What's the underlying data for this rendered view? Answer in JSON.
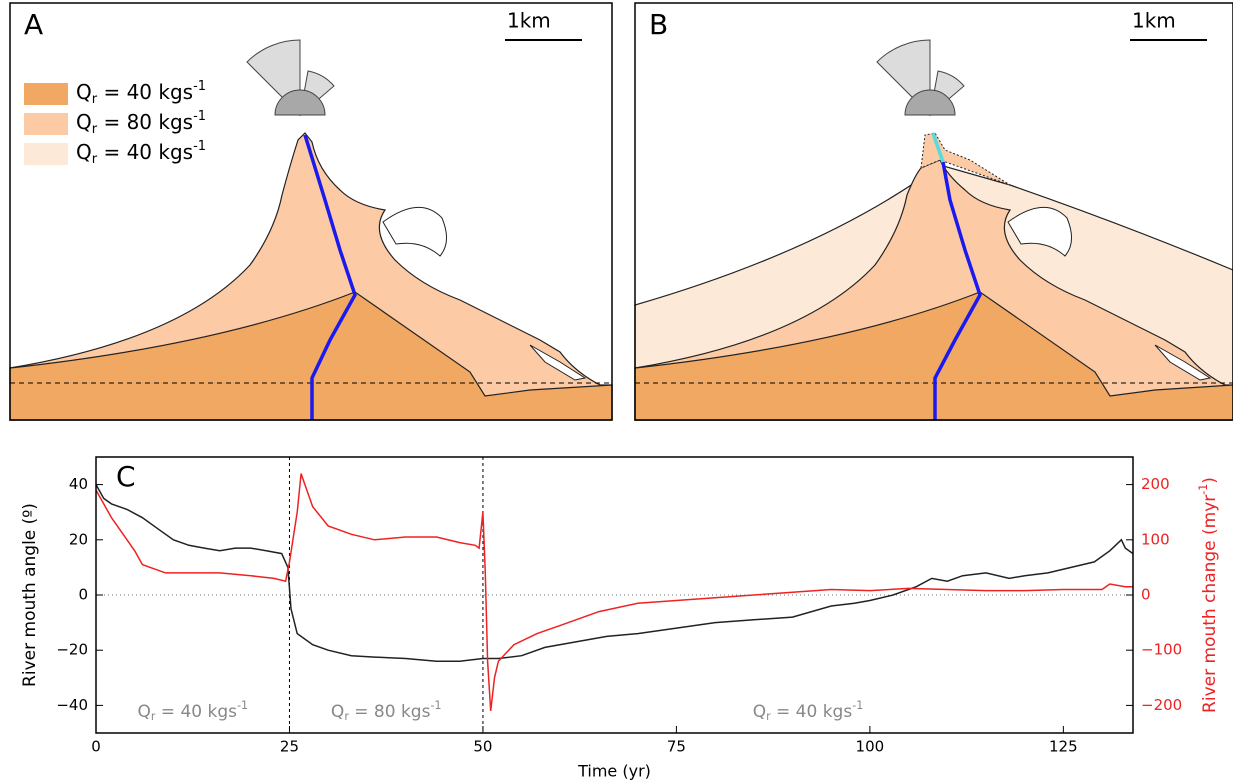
{
  "panel_a": {
    "label": "A",
    "scale": "1km",
    "legend": [
      {
        "symbol": "Q",
        "subscript": "r",
        "text": " = 40 kgs",
        "superscript": "-1",
        "color": "#f0a862"
      },
      {
        "symbol": "Q",
        "subscript": "r",
        "text": " = 80 kgs",
        "superscript": "-1",
        "color": "#fccaa5"
      },
      {
        "symbol": "Q",
        "subscript": "r",
        "text": " = 40 kgs",
        "superscript": "-1",
        "color": "#fde9d8"
      }
    ]
  },
  "panel_b": {
    "label": "B",
    "scale": "1km"
  },
  "chart_data": {
    "type": "line",
    "label": "C",
    "xlabel": "Time (yr)",
    "ylabel": "River mouth angle (º)",
    "y2label": {
      "text": "River mouth change (myr",
      "superscript": "-1",
      "suffix": ")"
    },
    "xlim": [
      0,
      134
    ],
    "xticks": [
      0,
      25,
      50,
      75,
      100,
      125
    ],
    "ylim": [
      -50,
      50
    ],
    "yticks": [
      {
        "value": -40,
        "label": "−40"
      },
      {
        "value": -20,
        "label": "−20"
      },
      0,
      20,
      40
    ],
    "y2lim": [
      -250,
      250
    ],
    "y2ticks": [
      {
        "value": -200,
        "label": "−200"
      },
      {
        "value": -100,
        "label": "−100"
      },
      0,
      100,
      200
    ],
    "vlines": [
      25,
      50
    ],
    "hline": 0,
    "annotations": [
      {
        "symbol": "Q",
        "subscript": "r",
        "text": " = 40 kgs",
        "superscript": "-1"
      },
      {
        "symbol": "Q",
        "subscript": "r",
        "text": " = 80 kgs",
        "superscript": "-1"
      },
      {
        "symbol": "Q",
        "subscript": "r",
        "text": " = 40 kgs",
        "superscript": "-1"
      }
    ],
    "series": [
      {
        "color": "#222222",
        "x": [
          0,
          1,
          2,
          4,
          6,
          8,
          10,
          12,
          14,
          16,
          18,
          20,
          22,
          24,
          24.8,
          25.2,
          26,
          28,
          30,
          33,
          36,
          40,
          44,
          47,
          50,
          52,
          55,
          58,
          62,
          66,
          70,
          75,
          80,
          85,
          90,
          95,
          98,
          100,
          103,
          106,
          108,
          110,
          112,
          115,
          118,
          120,
          123,
          126,
          129,
          131,
          132.5,
          133,
          134
        ],
        "values": [
          40,
          35,
          33,
          31,
          28,
          24,
          20,
          18,
          17,
          16,
          17,
          17,
          16,
          15,
          10,
          -5,
          -14,
          -18,
          -20,
          -22,
          -22.5,
          -23,
          -24,
          -24,
          -23,
          -23,
          -22,
          -19,
          -17,
          -15,
          -14,
          -12,
          -10,
          -9,
          -8,
          -4,
          -3,
          -2,
          0,
          3,
          6,
          5,
          7,
          8,
          6,
          7,
          8,
          10,
          12,
          16,
          20,
          17,
          15
        ]
      },
      {
        "color": "#ee2222",
        "axis": "y2",
        "x": [
          0,
          2,
          4,
          5,
          6,
          7,
          9,
          12,
          16,
          20,
          23,
          24.5,
          25,
          26,
          26.5,
          27,
          28,
          30,
          33,
          36,
          40,
          44,
          47,
          49,
          49.5,
          50,
          50.3,
          50.6,
          51,
          51.5,
          52,
          54,
          57,
          60,
          65,
          70,
          75,
          80,
          85,
          90,
          95,
          100,
          105,
          110,
          115,
          120,
          125,
          130,
          131,
          133,
          134
        ],
        "values": [
          190,
          140,
          100,
          80,
          55,
          50,
          40,
          40,
          40,
          35,
          30,
          25,
          60,
          150,
          220,
          200,
          160,
          125,
          110,
          100,
          105,
          105,
          95,
          90,
          85,
          150,
          40,
          -120,
          -210,
          -150,
          -120,
          -90,
          -70,
          -55,
          -30,
          -15,
          -10,
          -5,
          0,
          5,
          10,
          8,
          12,
          10,
          8,
          8,
          10,
          10,
          20,
          15,
          15
        ]
      }
    ]
  }
}
